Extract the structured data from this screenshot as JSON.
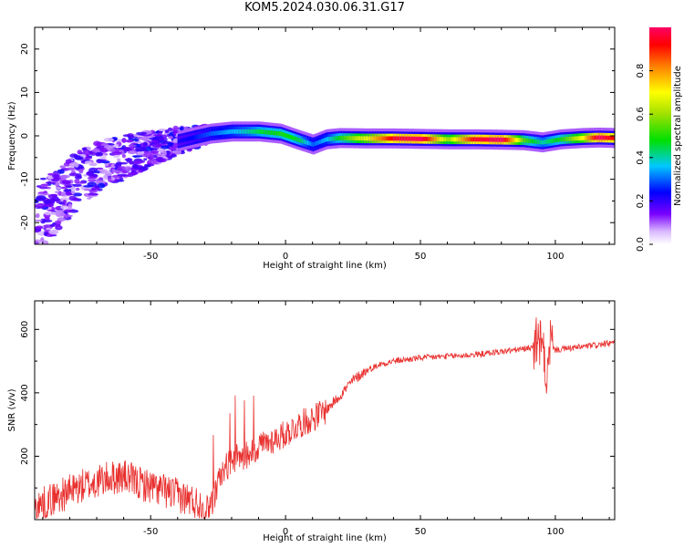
{
  "title": "KOM5.2024.030.06.31.G17",
  "chart_data": [
    {
      "type": "heatmap",
      "xlabel": "Height of straight line (km)",
      "ylabel": "Frequency (Hz)",
      "xlim": [
        -93,
        122
      ],
      "ylim": [
        -25,
        25
      ],
      "xticks": [
        -50,
        0,
        50,
        100
      ],
      "yticks": [
        -20,
        -10,
        0,
        10,
        20
      ],
      "colorbar": {
        "label": "Normalized spectral amplitude",
        "ticks": [
          "0.0",
          "0.2",
          "0.4",
          "0.6",
          "0.8"
        ],
        "range": [
          0,
          1
        ]
      },
      "ridge": [
        {
          "x": -93,
          "f": -19,
          "amp": 0.12
        },
        {
          "x": -85,
          "f": -15,
          "amp": 0.14
        },
        {
          "x": -75,
          "f": -9,
          "amp": 0.15
        },
        {
          "x": -65,
          "f": -6,
          "amp": 0.17
        },
        {
          "x": -55,
          "f": -4,
          "amp": 0.18
        },
        {
          "x": -45,
          "f": -2,
          "amp": 0.2
        },
        {
          "x": -35,
          "f": -0.5,
          "amp": 0.24
        },
        {
          "x": -28,
          "f": 0.5,
          "amp": 0.3
        },
        {
          "x": -20,
          "f": 1,
          "amp": 0.35
        },
        {
          "x": -10,
          "f": 1,
          "amp": 0.45
        },
        {
          "x": -2,
          "f": 0.5,
          "amp": 0.5
        },
        {
          "x": 5,
          "f": -1,
          "amp": 0.45
        },
        {
          "x": 10,
          "f": -2,
          "amp": 0.3
        },
        {
          "x": 15,
          "f": -0.8,
          "amp": 0.35
        },
        {
          "x": 20,
          "f": -0.5,
          "amp": 0.5
        },
        {
          "x": 30,
          "f": -0.6,
          "amp": 0.7
        },
        {
          "x": 40,
          "f": -0.6,
          "amp": 0.95
        },
        {
          "x": 50,
          "f": -0.7,
          "amp": 1.0
        },
        {
          "x": 60,
          "f": -0.8,
          "amp": 0.6
        },
        {
          "x": 70,
          "f": -0.8,
          "amp": 0.95
        },
        {
          "x": 80,
          "f": -0.9,
          "amp": 1.0
        },
        {
          "x": 88,
          "f": -1.0,
          "amp": 0.55
        },
        {
          "x": 95,
          "f": -1.5,
          "amp": 0.4
        },
        {
          "x": 102,
          "f": -0.8,
          "amp": 0.5
        },
        {
          "x": 110,
          "f": -0.5,
          "amp": 0.7
        },
        {
          "x": 116,
          "f": -0.4,
          "amp": 1.0
        },
        {
          "x": 122,
          "f": -0.5,
          "amp": 0.9
        }
      ]
    },
    {
      "type": "line",
      "xlabel": "Height of straight line (km)",
      "ylabel": "SNR (v/v)",
      "xlim": [
        -93,
        122
      ],
      "ylim": [
        0,
        690
      ],
      "xticks": [
        -50,
        0,
        50,
        100
      ],
      "yticks": [
        200,
        400,
        600
      ],
      "color": "#e8302e",
      "series": [
        {
          "x": [
            -93,
            -85,
            -75,
            -65,
            -60,
            -55,
            -45,
            -35,
            -30,
            -27,
            -24,
            -20,
            -15,
            -10,
            -5,
            0,
            5,
            10,
            15,
            20,
            25,
            30,
            35,
            40,
            45,
            50,
            60,
            70,
            80,
            90,
            93,
            95,
            97,
            98,
            100,
            105,
            110,
            115,
            122
          ],
          "y": [
            20,
            55,
            90,
            115,
            120,
            100,
            75,
            45,
            25,
            60,
            140,
            190,
            200,
            230,
            250,
            270,
            300,
            320,
            345,
            390,
            440,
            470,
            490,
            500,
            505,
            510,
            515,
            520,
            530,
            540,
            555,
            550,
            440,
            560,
            535,
            540,
            545,
            550,
            558
          ]
        }
      ]
    }
  ]
}
